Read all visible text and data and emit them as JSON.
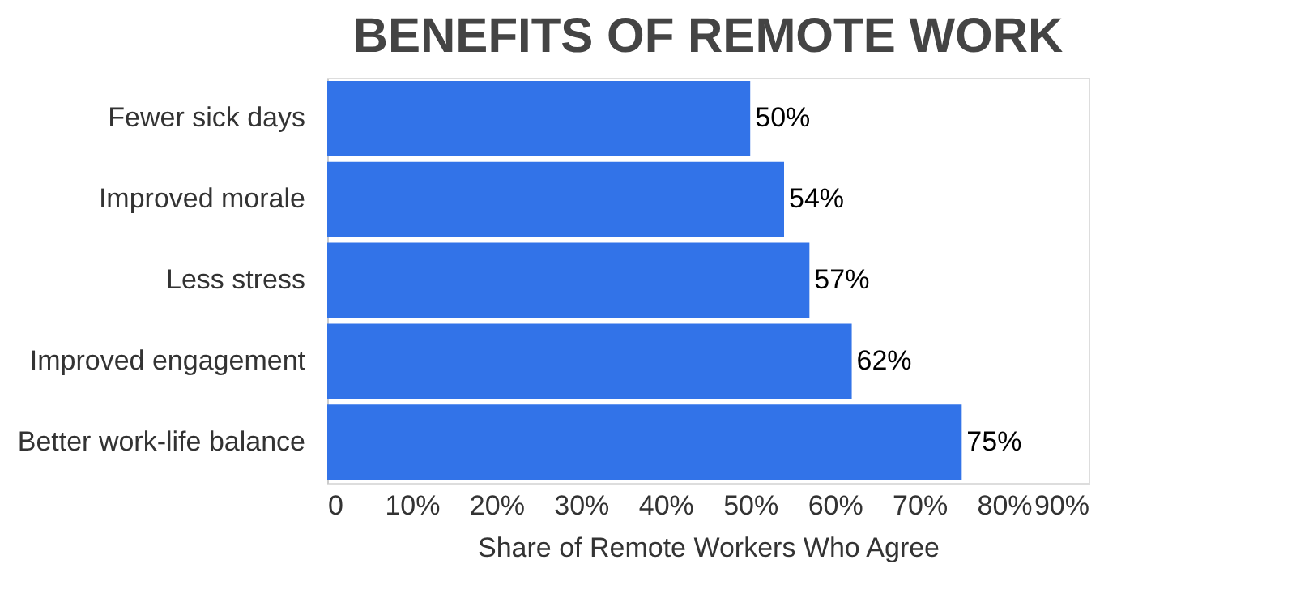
{
  "chart_data": {
    "type": "bar",
    "orientation": "horizontal",
    "title": "BENEFITS OF REMOTE WORK",
    "xlabel": "Share of Remote Workers Who Agree",
    "categories": [
      "Fewer sick days",
      "Improved morale",
      "Less stress",
      "Improved engagement",
      "Better work-life balance"
    ],
    "values": [
      50,
      54,
      57,
      62,
      75
    ],
    "value_labels": [
      "50%",
      "54%",
      "57%",
      "62%",
      "75%"
    ],
    "color": "#3273e8",
    "xlim": [
      0,
      90
    ],
    "xticks": [
      0,
      {
        "value": 10,
        "label": "10%"
      },
      {
        "value": 20,
        "label": "20%"
      },
      {
        "value": 30,
        "label": "30%"
      },
      {
        "value": 40,
        "label": "40%"
      },
      {
        "value": 50,
        "label": "50%"
      },
      {
        "value": 60,
        "label": "60%"
      },
      {
        "value": 70,
        "label": "70%"
      },
      {
        "value": 80,
        "label": "80%"
      },
      {
        "value": 90,
        "label": "90%"
      }
    ],
    "grid": false,
    "legend": false
  }
}
